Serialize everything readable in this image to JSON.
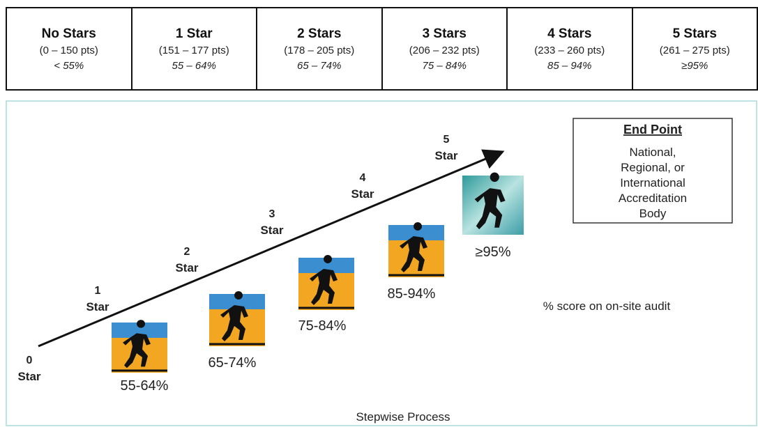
{
  "table": {
    "columns": [
      {
        "title": "No Stars",
        "points": "(0 – 150 pts)",
        "percent": "< 55%"
      },
      {
        "title": "1 Star",
        "points": "(151 – 177 pts)",
        "percent": "55 – 64%"
      },
      {
        "title": "2 Stars",
        "points": "(178 – 205 pts)",
        "percent": "65 – 74%"
      },
      {
        "title": "3 Stars",
        "points": "(206 – 232 pts)",
        "percent": "75 – 84%"
      },
      {
        "title": "4 Stars",
        "points": "(233 – 260 pts)",
        "percent": "85 – 94%"
      },
      {
        "title": "5 Stars",
        "points": "(261 – 275 pts)",
        "percent": "≥95%"
      }
    ]
  },
  "diagram": {
    "steps": [
      {
        "number": "0",
        "label": "Star"
      },
      {
        "number": "1",
        "label": "Star"
      },
      {
        "number": "2",
        "label": "Star"
      },
      {
        "number": "3",
        "label": "Star"
      },
      {
        "number": "4",
        "label": "Star"
      },
      {
        "number": "5",
        "label": "Star"
      }
    ],
    "scores": [
      "55-64%",
      "65-74%",
      "75-84%",
      "85-94%",
      "≥95%"
    ],
    "end_point": {
      "title": "End Point",
      "body": [
        "National,",
        "Regional, or",
        "International",
        "Accreditation",
        "Body"
      ]
    },
    "legend": "% score on on-site audit",
    "caption": "Stepwise Process"
  }
}
